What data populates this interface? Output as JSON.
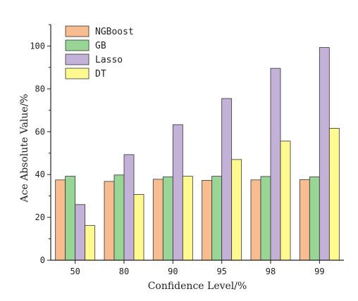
{
  "chart_data": {
    "type": "bar",
    "categories": [
      "50",
      "80",
      "90",
      "95",
      "98",
      "99"
    ],
    "series": [
      {
        "name": "NGBoost",
        "color": "#f7bc8f",
        "values": [
          37.5,
          36.8,
          37.8,
          37.3,
          37.5,
          37.6
        ]
      },
      {
        "name": "GB",
        "color": "#99d594",
        "values": [
          39.2,
          39.8,
          38.9,
          39.2,
          39.1,
          38.9
        ]
      },
      {
        "name": "Lasso",
        "color": "#c3b1d8",
        "values": [
          26.0,
          49.3,
          63.3,
          75.5,
          89.6,
          99.3
        ]
      },
      {
        "name": "DT",
        "color": "#fffa8f",
        "values": [
          16.2,
          30.7,
          39.2,
          47.0,
          55.6,
          61.6
        ]
      }
    ],
    "xlabel": "Confidence Level/%",
    "ylabel": "Ace Absolute Value/%",
    "ylim": [
      0,
      110
    ],
    "yticks": [
      "0",
      "20",
      "40",
      "60",
      "80",
      "100"
    ],
    "legend_position": "top-left",
    "grid": false
  }
}
